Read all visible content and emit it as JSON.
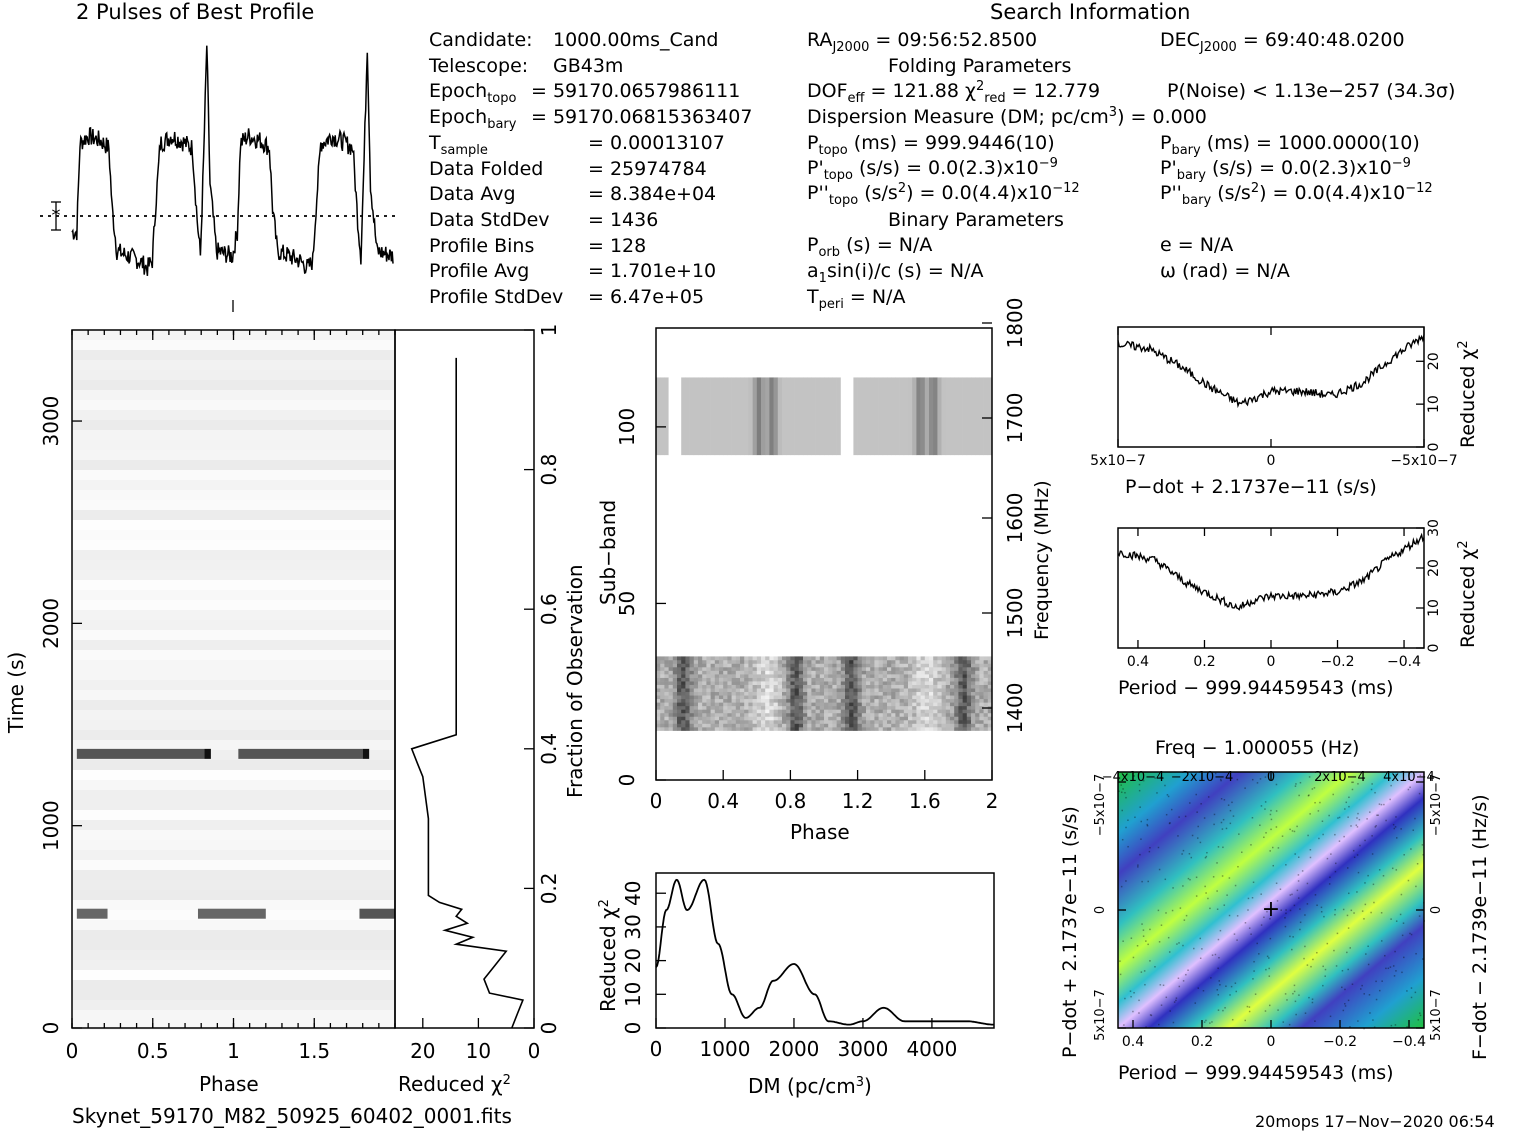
{
  "header": {
    "profile_title": "2 Pulses of Best Profile",
    "search_title": "Search Information",
    "folding_title": "Folding Parameters",
    "binary_title": "Binary Parameters"
  },
  "info_left": [
    {
      "label": "Candidate:",
      "value": "1000.00ms_Cand"
    },
    {
      "label": "Telescope:",
      "value": "GB43m"
    },
    {
      "label": "Epoch",
      "sub": "topo",
      "value": "= 59170.0657986111"
    },
    {
      "label": "Epoch",
      "sub": "bary",
      "value": "= 59170.06815363407"
    },
    {
      "label": "T",
      "sub": "sample",
      "value": "= 0.00013107"
    },
    {
      "label": "Data Folded",
      "value": "= 25974784"
    },
    {
      "label": "Data Avg",
      "value": "= 8.384e+04"
    },
    {
      "label": "Data StdDev",
      "value": "= 1436"
    },
    {
      "label": "Profile Bins",
      "value": "= 128"
    },
    {
      "label": "Profile Avg",
      "value": "= 1.701e+10"
    },
    {
      "label": "Profile StdDev",
      "value": "= 6.47e+05"
    }
  ],
  "search": {
    "ra": "= 09:56:52.8500",
    "dec": "= 69:40:48.0200",
    "dof": "= 121.88",
    "chi2red": "= 12.779",
    "pnoise": "P(Noise) < 1.13e−257   (34.3σ)",
    "dm": "Dispersion Measure (DM; pc/cm",
    "dm_val": ") = 0.000",
    "ptopo": "(ms) =  999.9446(10)",
    "pbary": "(ms) =  1000.0000(10)",
    "pdtopo": "(s/s) = 0.0(2.3)x10",
    "pdtopo_exp": "−9",
    "pdbary": "(s/s) = 0.0(2.3)x10",
    "pdbary_exp": "−9",
    "pddtopo": ") = 0.0(4.4)x10",
    "pddtopo_exp": "−12",
    "pddbary": ") = 0.0(4.4)x10",
    "pddbary_exp": "−12",
    "porb": "(s) = N/A",
    "ecc": "e = N/A",
    "a1": "a",
    "a1_rest": "sin(i)/c (s) = N/A",
    "omega": "ω (rad) = N/A",
    "tperi": "= N/A"
  },
  "footer": {
    "filename": "Skynet_59170_M82_50925_60402_0001.fits",
    "stamp": "20mops 17−Nov−2020 06:54"
  },
  "colors": {
    "ink": "#000000",
    "grid_dark": "#222222",
    "ppdot_low": "#4040c0",
    "ppdot_high": "#30d030"
  },
  "chart_data": [
    {
      "type": "line",
      "name": "profile",
      "title": "2 Pulses of Best Profile",
      "x": [
        0,
        0.03,
        0.05,
        0.1,
        0.18,
        0.23,
        0.25,
        0.28,
        0.35,
        0.42,
        0.47,
        0.5,
        0.52,
        0.55,
        0.58,
        0.62,
        0.68,
        0.75,
        0.78,
        0.8,
        0.82,
        0.84,
        0.86,
        0.9,
        1.0,
        1.03,
        1.05,
        1.1,
        1.18,
        1.23,
        1.25,
        1.28,
        1.35,
        1.42,
        1.47,
        1.5,
        1.52,
        1.55,
        1.58,
        1.62,
        1.68,
        1.75,
        1.78,
        1.8,
        1.82,
        1.84,
        1.86,
        1.9,
        2.0
      ],
      "y": [
        0.2,
        0.2,
        0.57,
        0.6,
        0.58,
        0.55,
        0.3,
        0.12,
        0.1,
        0.08,
        0.05,
        0.08,
        0.3,
        0.57,
        0.58,
        0.6,
        0.58,
        0.55,
        0.25,
        0.1,
        0.5,
        0.98,
        0.4,
        0.12,
        0.1,
        0.2,
        0.57,
        0.6,
        0.58,
        0.55,
        0.3,
        0.12,
        0.1,
        0.08,
        0.05,
        0.08,
        0.3,
        0.57,
        0.58,
        0.6,
        0.58,
        0.55,
        0.25,
        0.1,
        0.5,
        0.98,
        0.4,
        0.12,
        0.1
      ]
    },
    {
      "type": "heatmap",
      "name": "time-phase",
      "xlabel": "Phase",
      "ylabel": "Time (s)",
      "xlim": [
        0,
        2
      ],
      "ylim": [
        0,
        3450
      ],
      "xticks": [
        "0",
        "0.5",
        "1",
        "1.5"
      ],
      "yticks": [
        "0",
        "1000",
        "2000",
        "3000"
      ],
      "bright_rows_s": [
        1350,
        560
      ]
    },
    {
      "type": "line",
      "name": "time-chi2",
      "xlabel": "Reduced χ²",
      "ylabel": "Fraction of Observation",
      "xlim": [
        25,
        0
      ],
      "ylim": [
        0,
        1
      ],
      "xticks": [
        "20",
        "10",
        "0"
      ],
      "yticks": [
        "0",
        "0.2",
        "0.4",
        "0.6",
        "0.8",
        "1"
      ],
      "x": [
        4,
        3,
        2,
        8,
        9,
        7,
        5,
        14,
        11,
        16,
        12,
        14,
        13,
        17,
        19,
        19,
        19,
        20,
        21,
        22,
        14,
        14,
        14,
        14,
        14,
        14
      ],
      "y": [
        0,
        0.02,
        0.04,
        0.05,
        0.07,
        0.09,
        0.11,
        0.12,
        0.13,
        0.14,
        0.15,
        0.16,
        0.17,
        0.18,
        0.19,
        0.25,
        0.3,
        0.36,
        0.38,
        0.4,
        0.42,
        0.5,
        0.6,
        0.7,
        0.8,
        0.96
      ]
    },
    {
      "type": "heatmap",
      "name": "subband-phase",
      "xlabel": "Phase",
      "ylabel": "Sub−band",
      "y2label": "Frequency (MHz)",
      "xlim": [
        0,
        2
      ],
      "ylim": [
        0,
        128
      ],
      "xticks": [
        "0",
        "0.4",
        "0.8",
        "1.2",
        "1.6",
        "2"
      ],
      "yticks": [
        "0",
        "50",
        "100"
      ],
      "y2ticks": [
        "1400",
        "1500",
        "1600",
        "1700",
        "1800"
      ],
      "bands": [
        [
          14,
          35
        ],
        [
          92,
          114
        ]
      ]
    },
    {
      "type": "line",
      "name": "dm-chi2",
      "xlabel": "DM (pc/cm",
      "ylabel": "Reduced χ²",
      "xlim": [
        0,
        4900
      ],
      "ylim": [
        0,
        46
      ],
      "xticks": [
        "0",
        "1000",
        "2000",
        "3000",
        "4000"
      ],
      "yticks": [
        "0",
        "10",
        "20",
        "30",
        "40"
      ],
      "x": [
        0,
        150,
        300,
        450,
        700,
        900,
        1100,
        1300,
        1500,
        1700,
        2000,
        2300,
        2500,
        2800,
        3000,
        3300,
        3600,
        4000,
        4500,
        4900
      ],
      "y": [
        18,
        35,
        44,
        35,
        44,
        25,
        10,
        3,
        6,
        14,
        19,
        10,
        2,
        1,
        2,
        6,
        2,
        2,
        2,
        1
      ]
    },
    {
      "type": "line",
      "name": "pdot-chi2",
      "xlabel": "P−dot + 2.1737e−11 (s/s)",
      "ylabel": "Reduced χ²",
      "xlim": [
        5e-07,
        -5e-07
      ],
      "ylim": [
        0,
        28
      ],
      "xticks": [
        "5x10−7",
        "0",
        "−5x10−7"
      ],
      "yticks": [
        "0",
        "10",
        "20"
      ],
      "x": [
        5e-07,
        4e-07,
        3e-07,
        2e-07,
        1e-07,
        0,
        -1e-07,
        -2e-07,
        -3e-07,
        -4e-07,
        -5e-07
      ],
      "y": [
        24,
        23,
        19,
        14,
        10,
        13,
        13,
        12,
        15,
        21,
        26
      ]
    },
    {
      "type": "line",
      "name": "period-chi2",
      "xlabel": "Period − 999.94459543 (ms)",
      "ylabel": "Reduced χ²",
      "xlim": [
        0.46,
        -0.46
      ],
      "ylim": [
        0,
        30
      ],
      "xticks": [
        "0.4",
        "0.2",
        "0",
        "−0.2",
        "−0.4"
      ],
      "yticks": [
        "0",
        "10",
        "20",
        "30"
      ],
      "x": [
        0.46,
        0.35,
        0.25,
        0.15,
        0.1,
        0.05,
        0,
        -0.1,
        -0.2,
        -0.28,
        -0.35,
        -0.46
      ],
      "y": [
        24,
        22,
        16,
        12,
        10,
        12,
        13,
        13,
        14,
        17,
        22,
        28
      ]
    },
    {
      "type": "heatmap",
      "name": "p-pdot",
      "title": "Freq − 1.000055 (Hz)",
      "xlabel": "Period − 999.94459543 (ms)",
      "ylabel": "P−dot + 2.1737e−11 (s/s)",
      "y2label": "F−dot − 2.1739e−11 (Hz/s)",
      "xticks": [
        "0.4",
        "0.2",
        "0",
        "−0.2",
        "−0.4"
      ],
      "x2ticks": [
        "−4x10−4",
        "−2x10−4",
        "0",
        "2x10−4",
        "4x10−4"
      ],
      "yticks": [
        "5x10−7",
        "0",
        "−5x10−7"
      ],
      "y2ticks": [
        "−5x10−7",
        "0",
        "5x10−7"
      ]
    }
  ]
}
